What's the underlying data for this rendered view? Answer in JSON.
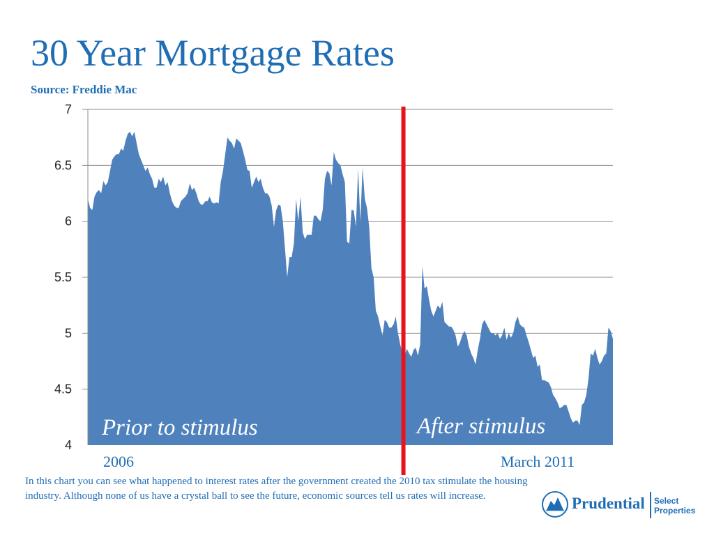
{
  "slide": {
    "title": "30 Year Mortgage Rates",
    "source": "Source: Freddie Mac",
    "annotation_left": "Prior to stimulus",
    "annotation_right": "After stimulus",
    "period_start": "2006",
    "period_end": "March 2011",
    "note": "In this chart you can see what happened to interest rates after the government created the 2010 tax stimulate the housing industry. Although none of us have a crystal ball to see the future, economic sources tell us rates will increase.",
    "logo": {
      "name": "Prudential",
      "sub_line1": "Select",
      "sub_line2": "Properties"
    }
  },
  "colors": {
    "title": "#1f6db5",
    "area": "#4f81bd",
    "divider": "#e8141b",
    "grid": "#8c8c8c"
  },
  "chart_data": {
    "type": "area",
    "title": "30 Year Mortgage Rates",
    "xlabel": "",
    "ylabel": "",
    "ylim": [
      4,
      7
    ],
    "y_ticks": [
      "4",
      "4.5",
      "5",
      "5.5",
      "6",
      "6.5",
      "7"
    ],
    "y_tick_values": [
      4,
      4.5,
      5,
      5.5,
      6,
      6.5,
      7
    ],
    "grid": true,
    "x_range_labels": [
      "2006",
      "March 2011"
    ],
    "stimulus_marker_fraction": 0.601,
    "values": [
      6.2,
      6.12,
      6.1,
      6.22,
      6.26,
      6.28,
      6.25,
      6.36,
      6.32,
      6.35,
      6.45,
      6.55,
      6.58,
      6.6,
      6.6,
      6.65,
      6.63,
      6.72,
      6.78,
      6.8,
      6.76,
      6.8,
      6.7,
      6.6,
      6.55,
      6.5,
      6.45,
      6.48,
      6.42,
      6.38,
      6.3,
      6.3,
      6.38,
      6.35,
      6.4,
      6.32,
      6.35,
      6.25,
      6.18,
      6.14,
      6.12,
      6.12,
      6.18,
      6.2,
      6.22,
      6.25,
      6.34,
      6.28,
      6.3,
      6.25,
      6.18,
      6.15,
      6.15,
      6.18,
      6.18,
      6.22,
      6.17,
      6.16,
      6.17,
      6.16,
      6.35,
      6.45,
      6.6,
      6.75,
      6.72,
      6.7,
      6.65,
      6.74,
      6.72,
      6.7,
      6.63,
      6.55,
      6.46,
      6.45,
      6.3,
      6.35,
      6.4,
      6.35,
      6.38,
      6.3,
      6.25,
      6.25,
      6.22,
      6.14,
      5.95,
      6.1,
      6.15,
      6.14,
      6.0,
      5.75,
      5.5,
      5.68,
      5.68,
      5.8,
      6.2,
      6.0,
      6.22,
      5.9,
      5.84,
      5.88,
      5.88,
      5.88,
      6.05,
      6.05,
      6.02,
      6.0,
      6.1,
      6.38,
      6.45,
      6.43,
      6.32,
      6.62,
      6.55,
      6.52,
      6.5,
      6.42,
      6.35,
      5.82,
      5.8,
      6.1,
      6.1,
      5.95,
      6.47,
      6.0,
      6.48,
      6.2,
      6.12,
      5.95,
      5.58,
      5.5,
      5.2,
      5.15,
      5.06,
      4.98,
      5.12,
      5.1,
      5.05,
      5.05,
      5.08,
      5.15,
      5.0,
      4.9,
      4.82,
      4.8,
      4.86,
      4.82,
      4.79,
      4.85,
      4.87,
      4.8,
      4.9,
      5.6,
      5.4,
      5.42,
      5.3,
      5.2,
      5.15,
      5.2,
      5.25,
      5.22,
      5.28,
      5.1,
      5.08,
      5.06,
      5.06,
      5.03,
      4.98,
      4.88,
      4.92,
      4.98,
      5.02,
      4.98,
      4.88,
      4.82,
      4.78,
      4.72,
      4.85,
      4.95,
      5.08,
      5.12,
      5.08,
      5.04,
      5.0,
      5.0,
      4.98,
      5.0,
      4.95,
      4.98,
      5.05,
      4.94,
      5.0,
      4.96,
      5.0,
      5.1,
      5.15,
      5.08,
      5.06,
      5.05,
      4.98,
      4.92,
      4.85,
      4.78,
      4.8,
      4.7,
      4.72,
      4.58,
      4.58,
      4.57,
      4.56,
      4.52,
      4.45,
      4.42,
      4.38,
      4.33,
      4.34,
      4.36,
      4.36,
      4.3,
      4.24,
      4.2,
      4.22,
      4.22,
      4.18,
      4.36,
      4.38,
      4.45,
      4.6,
      4.82,
      4.8,
      4.86,
      4.78,
      4.72,
      4.75,
      4.8,
      4.82,
      5.05,
      5.02,
      4.95
    ]
  }
}
